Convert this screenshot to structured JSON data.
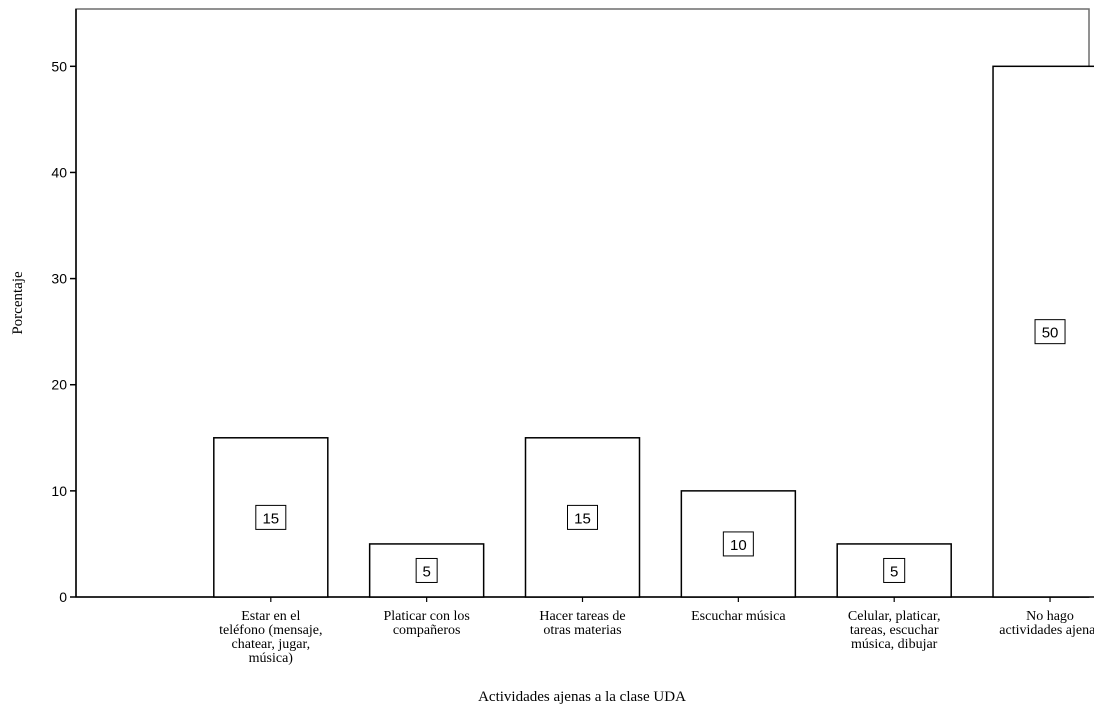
{
  "chart_data": {
    "type": "bar",
    "title": "",
    "xlabel": "Actividades ajenas a la clase UDA",
    "ylabel": "Porcentaje",
    "categories": [
      "Estar en el teléfono (mensaje, chatear, jugar, música)",
      "Platicar con los compañeros",
      "Hacer tareas de otras materias",
      "Escuchar música",
      "Celular, platicar, tareas, escuchar música, dibujar",
      "No hago actividades ajenas"
    ],
    "category_lines": [
      [
        "Estar en el",
        "teléfono (mensaje,",
        "chatear, jugar,",
        "música)"
      ],
      [
        "Platicar con los",
        "compañeros"
      ],
      [
        "Hacer tareas de",
        "otras materias"
      ],
      [
        "Escuchar música"
      ],
      [
        "Celular, platicar,",
        "tareas, escuchar",
        "música, dibujar"
      ],
      [
        "No hago",
        "actividades ajenas"
      ]
    ],
    "values": [
      15,
      5,
      15,
      10,
      5,
      50
    ],
    "data_labels": [
      "15",
      "5",
      "15",
      "10",
      "5",
      "50"
    ],
    "yticks": [
      0,
      10,
      20,
      30,
      40,
      50
    ],
    "ylim": [
      0,
      55.4
    ],
    "grid": false,
    "bar_fill": "#ffffff",
    "bar_stroke": "#000000",
    "frame_color": "#6d6d6d"
  }
}
